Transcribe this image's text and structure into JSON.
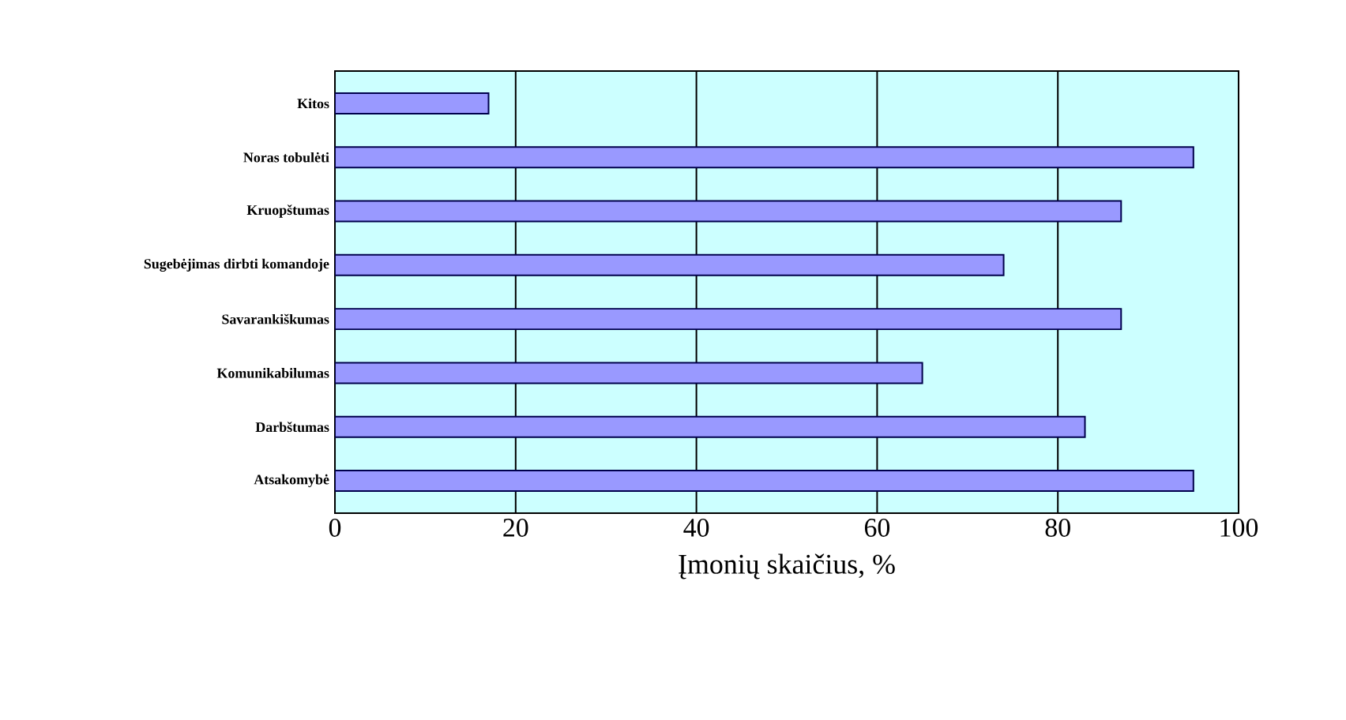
{
  "chart_data": {
    "type": "bar",
    "orientation": "horizontal",
    "xlabel": "Įmonių skaičius, %",
    "categories": [
      "Kitos",
      "Noras tobulėti",
      "Kruopštumas",
      "Sugebėjimas dirbti komandoje",
      "Savarankiškumas",
      "Komunikabilumas",
      "Darbštumas",
      "Atsakomybė"
    ],
    "values": [
      17,
      95,
      87,
      74,
      87,
      65,
      83,
      95
    ],
    "color": "#9999ff",
    "xlim": [
      0,
      100
    ],
    "xticks": [
      0,
      20,
      40,
      60,
      80,
      100
    ],
    "grid": "x"
  }
}
